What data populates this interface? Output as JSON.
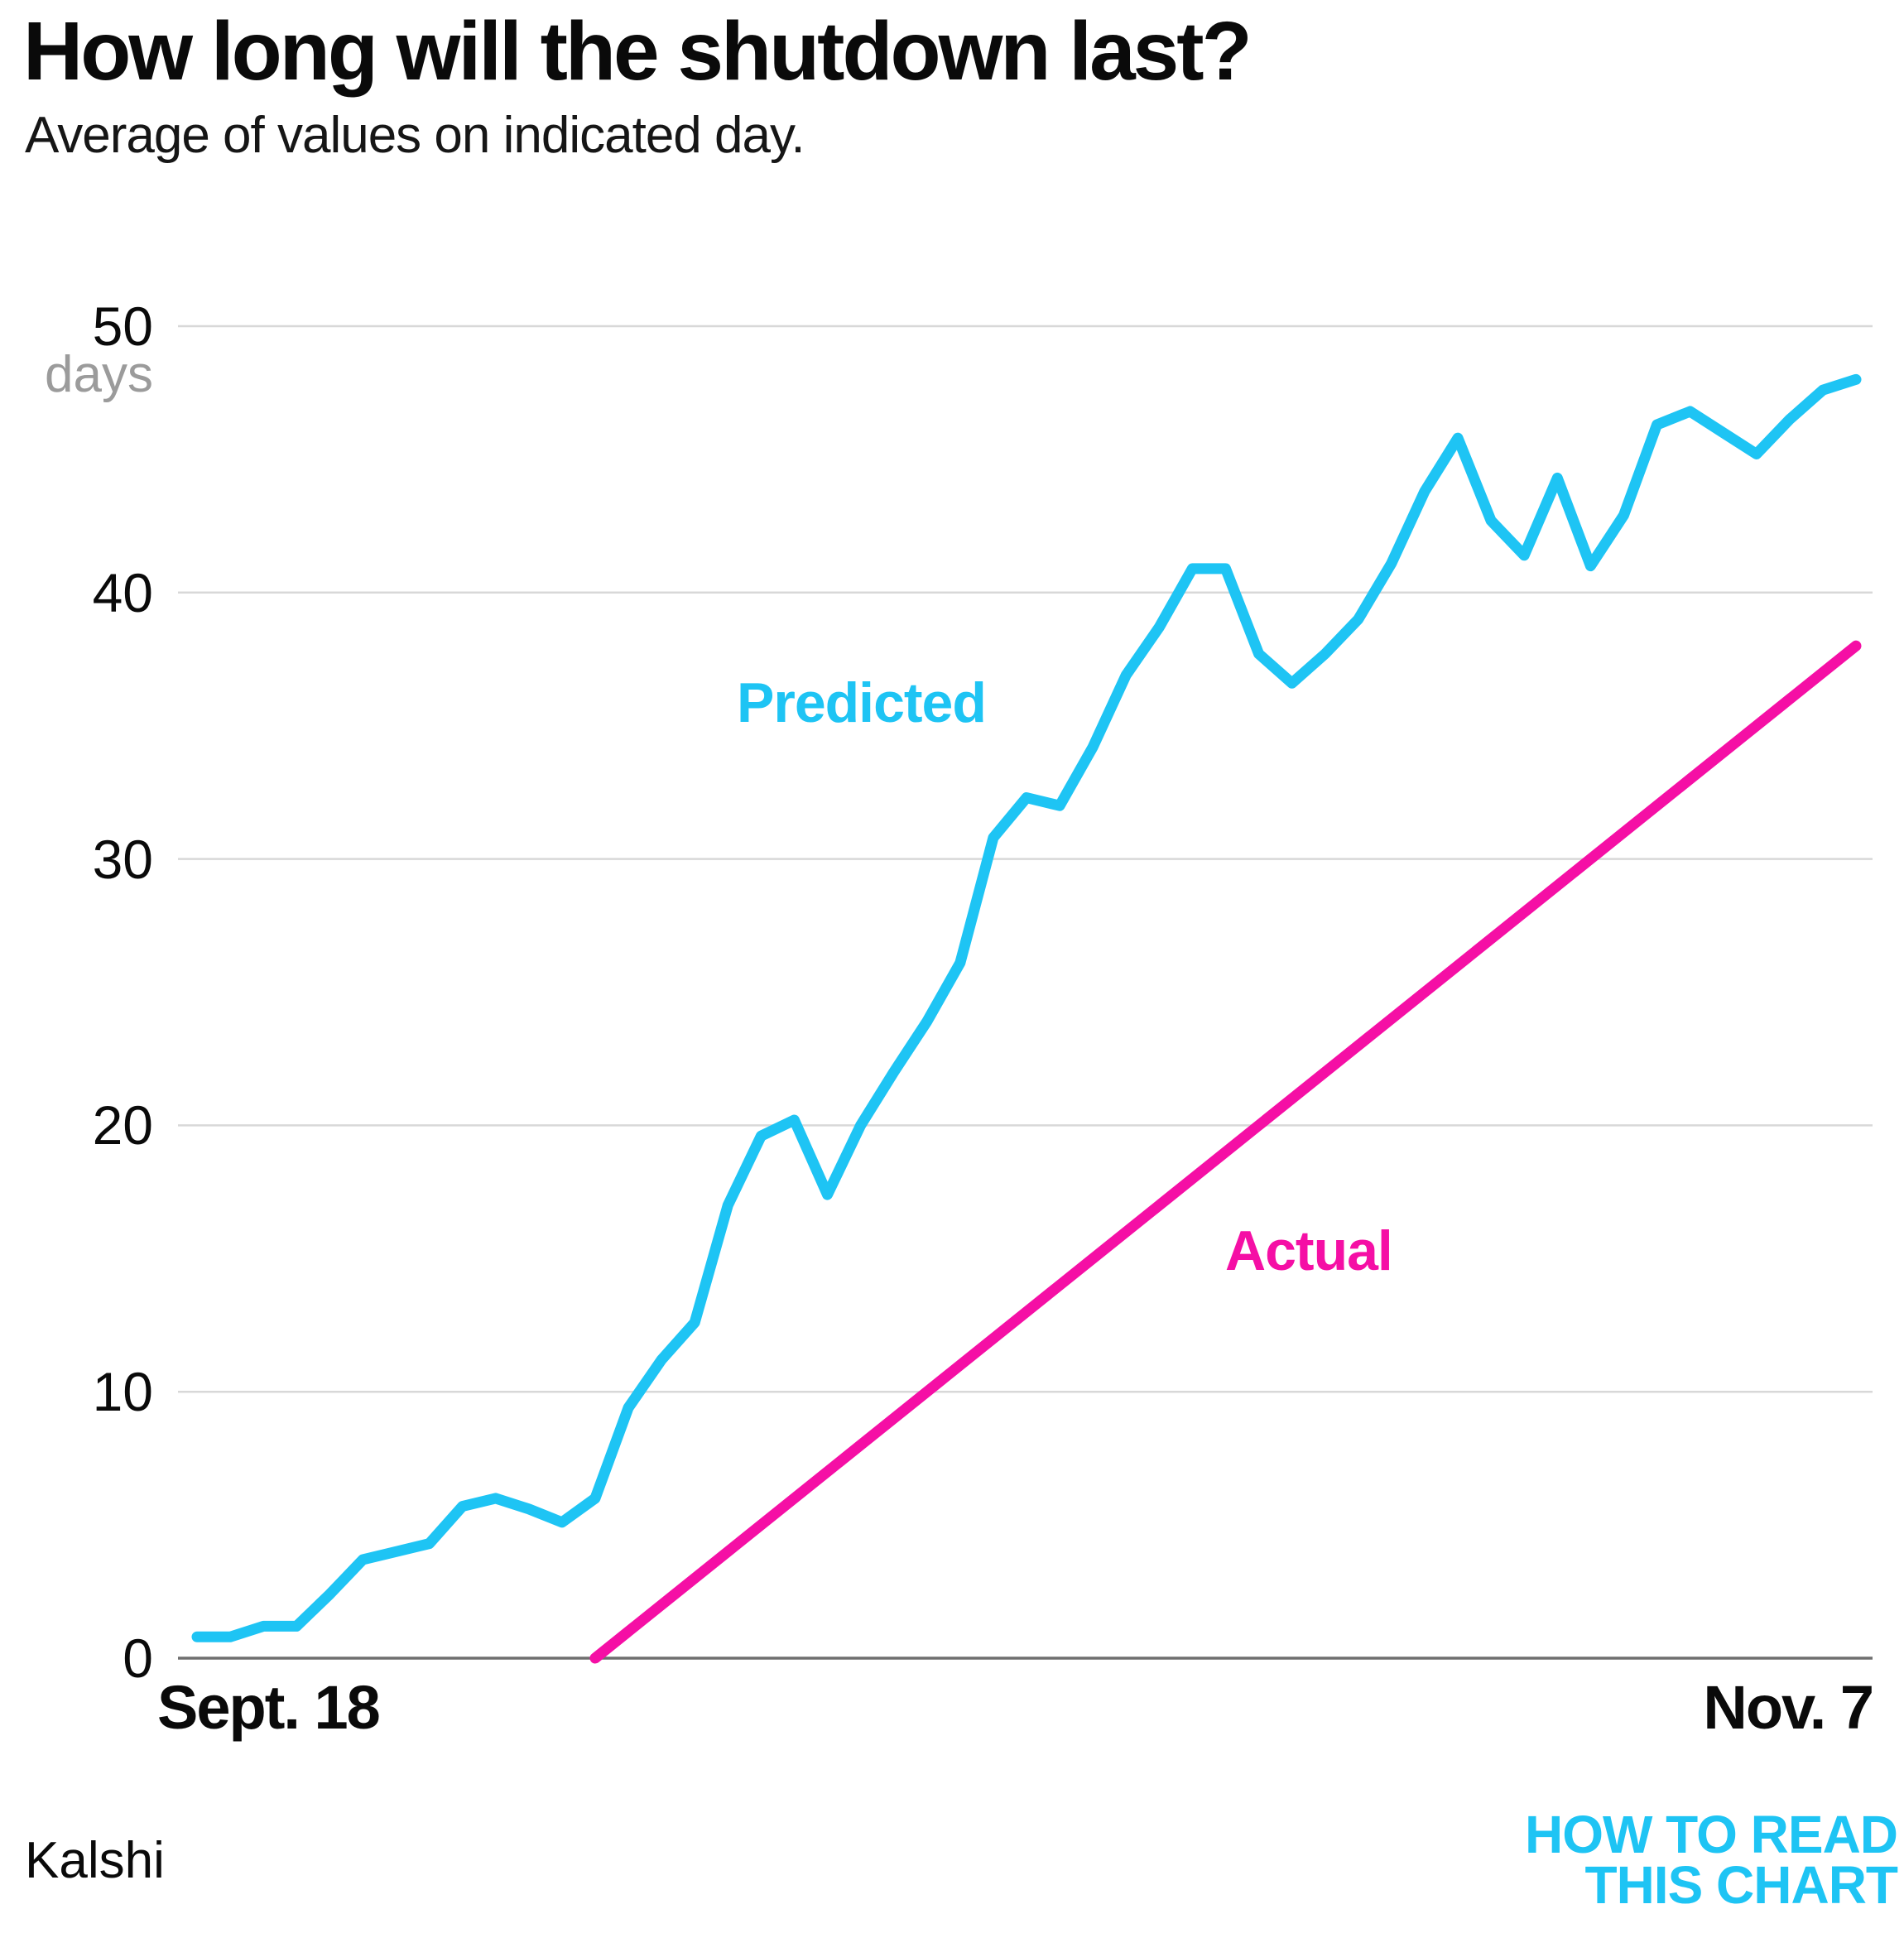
{
  "title": "How long will the shutdown last?",
  "subtitle": "Average of values on indicated day.",
  "source": "Kalshi",
  "logo": {
    "line1": "HOW TO READ",
    "line2": "THIS CHART"
  },
  "labels": {
    "predicted": "Predicted",
    "actual": "Actual"
  },
  "axis": {
    "y_unit": "days",
    "x_start_label": "Sept. 18",
    "x_end_label": "Nov. 7"
  },
  "colors": {
    "predicted": "#1EC4F4",
    "actual": "#F50FA5",
    "grid": "#D8D8D8",
    "axis": "#6F6F6F",
    "unit_text": "#9B9B9B",
    "logo": "#1EC4F4"
  },
  "chart_data": {
    "type": "line",
    "title": "How long will the shutdown last?",
    "subtitle": "Average of values on indicated day.",
    "xlabel": "",
    "ylabel": "days",
    "ylim": [
      0,
      50
    ],
    "yticks": [
      0,
      10,
      20,
      30,
      40,
      50
    ],
    "grid": "horizontal",
    "legend_position": "inline-labels",
    "x_axis": {
      "start_label": "Sept. 18",
      "end_label": "Nov. 7",
      "units": "days since Sept. 18",
      "span_days": 50
    },
    "series": [
      {
        "name": "Predicted",
        "color": "#1EC4F4",
        "x_step": "daily from Sept. 18 (index = days since Sept. 18)",
        "values": [
          0.8,
          0.8,
          1.2,
          1.2,
          2.4,
          3.7,
          4.0,
          4.3,
          5.7,
          6.0,
          5.6,
          5.1,
          6.0,
          9.4,
          11.2,
          12.6,
          17.0,
          19.6,
          20.2,
          17.4,
          20.0,
          22.0,
          23.9,
          26.1,
          30.8,
          32.3,
          32.0,
          34.2,
          36.9,
          38.7,
          40.9,
          40.9,
          37.7,
          36.6,
          37.7,
          39.0,
          41.1,
          43.8,
          45.8,
          42.7,
          41.4,
          44.3,
          41.0,
          42.9,
          46.3,
          46.8,
          46.0,
          45.2,
          46.5,
          47.6,
          48.0
        ]
      },
      {
        "name": "Actual",
        "color": "#F50FA5",
        "x_days": [
          12,
          50
        ],
        "values": [
          0,
          38
        ]
      }
    ]
  }
}
